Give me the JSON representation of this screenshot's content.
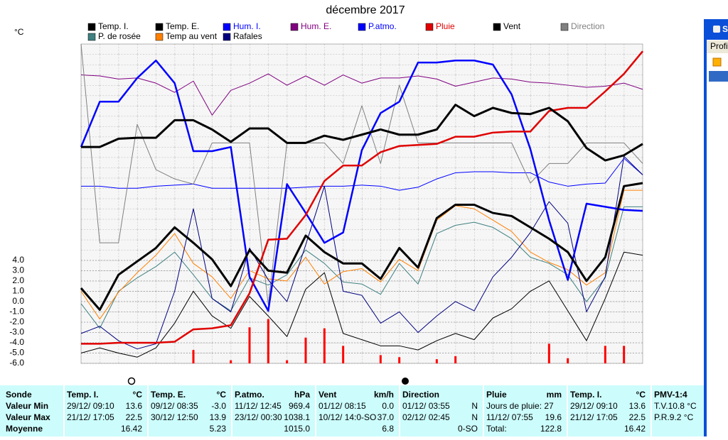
{
  "chart_data": {
    "type": "line",
    "title": "décembre 2017",
    "y_unit": "°C",
    "ylim": [
      -6,
      25
    ],
    "yticks": [
      {
        "value": -6,
        "label": "-6.0"
      },
      {
        "value": -5,
        "label": "-5.0"
      },
      {
        "value": -4,
        "label": "-4.0"
      },
      {
        "value": -3,
        "label": "-3.0"
      },
      {
        "value": -2,
        "label": "-2.0"
      },
      {
        "value": -1,
        "label": "-1.0"
      },
      {
        "value": 0,
        "label": "0.0"
      },
      {
        "value": 1,
        "label": "1.0"
      },
      {
        "value": 2,
        "label": "2.0"
      },
      {
        "value": 3,
        "label": "3.0"
      },
      {
        "value": 4,
        "label": "4.0"
      }
    ],
    "grid": true,
    "series": [
      {
        "name": "Temp. I.",
        "color": "#000000",
        "line_width": 3,
        "values": [
          1.3,
          -0.8,
          2.6,
          3.9,
          5.2,
          7.2,
          5.7,
          4.1,
          1.5,
          5.0,
          3.0,
          2.8,
          6.4,
          4.8,
          3.7,
          3.7,
          2.2,
          5.2,
          3.3,
          8.1,
          9.4,
          9.4,
          8.6,
          8.3,
          7.2,
          6.1,
          4.8,
          2.0,
          4.3,
          11.2,
          11.5
        ]
      },
      {
        "name": "Temp. E.",
        "color": "#000000",
        "line_width": 3,
        "values": [
          15.0,
          15.0,
          15.8,
          15.9,
          15.9,
          17.6,
          17.6,
          16.7,
          15.5,
          16.8,
          16.8,
          15.4,
          15.4,
          16.1,
          15.7,
          16.2,
          16.7,
          16.2,
          16.2,
          16.7,
          19.1,
          18.0,
          18.8,
          18.3,
          18.2,
          18.8,
          17.5,
          14.9,
          13.7,
          14.2,
          15.3
        ]
      },
      {
        "name": "Hum. I.",
        "color": "#0000ff",
        "line_width": 1,
        "values": [
          11.2,
          11.2,
          11.0,
          11.0,
          11.2,
          11.3,
          11.4,
          11.0,
          11.0,
          11.0,
          11.0,
          11.0,
          11.1,
          11.2,
          11.2,
          11.3,
          11.2,
          10.8,
          11.1,
          11.9,
          12.5,
          12.6,
          12.6,
          12.5,
          12.5,
          11.6,
          11.2,
          11.4,
          11.5,
          13.9,
          12.3
        ]
      },
      {
        "name": "Hum. E.",
        "color": "#800080",
        "line_width": 1,
        "values": [
          22.0,
          21.9,
          21.6,
          21.7,
          21.2,
          20.3,
          21.4,
          18.1,
          20.5,
          21.2,
          22.1,
          21.0,
          21.9,
          21.0,
          22.0,
          21.2,
          21.7,
          21.7,
          21.9,
          21.6,
          20.9,
          21.3,
          21.7,
          21.6,
          21.3,
          21.2,
          21.0,
          20.8,
          20.9,
          21.2,
          20.6
        ]
      },
      {
        "name": "P.atmo.",
        "color": "#0000ff",
        "line_width": 2.5,
        "values": [
          15.0,
          19.4,
          19.4,
          21.7,
          23.4,
          21.2,
          14.6,
          14.6,
          15.0,
          2.4,
          -0.9,
          11.4,
          8.6,
          5.7,
          6.7,
          14.7,
          18.3,
          19.4,
          23.2,
          23.2,
          23.4,
          23.4,
          23.0,
          20.1,
          14.8,
          7.9,
          2.1,
          9.5,
          9.2,
          8.9,
          8.8
        ]
      },
      {
        "name": "Pluie",
        "color": "#e00000",
        "line_width": 2.5,
        "values": [
          -4.1,
          -4.1,
          -4.0,
          -4.0,
          -4.0,
          -3.9,
          -2.7,
          -2.6,
          -2.3,
          0.8,
          6.0,
          6.1,
          8.4,
          11.7,
          13.2,
          13.2,
          14.5,
          15.1,
          15.2,
          15.3,
          16.0,
          16.0,
          16.4,
          16.5,
          16.5,
          18.5,
          18.8,
          18.8,
          20.4,
          22.1,
          24.3
        ]
      },
      {
        "name": "Vent",
        "color": "#000000",
        "line_width": 1,
        "values": [
          -5.0,
          -4.5,
          -5.0,
          -5.4,
          -4.5,
          -2.1,
          1.0,
          -1.4,
          -2.6,
          0.5,
          -1.4,
          -3.4,
          1.2,
          2.8,
          -3.1,
          -3.7,
          -4.3,
          -4.3,
          -4.7,
          -3.8,
          -3.1,
          -3.7,
          -1.6,
          -0.7,
          1.0,
          2.0,
          -0.9,
          -3.8,
          0.3,
          4.8,
          4.5
        ]
      },
      {
        "name": "Direction",
        "color": "#808080",
        "line_width": 1,
        "values": [
          25.0,
          5.7,
          5.7,
          17.2,
          12.8,
          11.9,
          11.4,
          15.4,
          15.4,
          15.4,
          -0.3,
          15.4,
          15.4,
          15.4,
          13.4,
          19.0,
          13.4,
          21.0,
          15.4,
          15.4,
          15.4,
          15.4,
          15.4,
          15.4,
          11.5,
          13.4,
          13.4,
          15.4,
          15.4,
          15.4,
          13.4
        ]
      },
      {
        "name": "P. de rosée",
        "color": "#408080",
        "line_width": 1,
        "values": [
          -0.2,
          -2.6,
          1.0,
          2.3,
          3.4,
          4.8,
          2.6,
          0.3,
          -0.9,
          2.3,
          1.6,
          2.6,
          5.0,
          3.7,
          1.9,
          1.7,
          0.7,
          3.7,
          1.7,
          6.6,
          7.4,
          7.7,
          7.2,
          6.1,
          4.3,
          3.7,
          2.6,
          0.0,
          2.3,
          9.2,
          9.2
        ]
      },
      {
        "name": "Temp au vent",
        "color": "#ff8000",
        "line_width": 1,
        "values": [
          1.0,
          -1.7,
          0.9,
          2.8,
          4.5,
          6.6,
          3.7,
          2.4,
          0.3,
          3.0,
          2.2,
          2.0,
          4.3,
          1.7,
          2.9,
          3.2,
          1.9,
          4.1,
          3.0,
          7.9,
          9.3,
          9.0,
          7.9,
          6.8,
          4.8,
          3.8,
          3.1,
          1.6,
          2.8,
          10.8,
          10.8
        ]
      },
      {
        "name": "Rafales",
        "color": "#000080",
        "line_width": 1,
        "values": [
          -3.1,
          -2.4,
          -3.8,
          -4.6,
          -4.1,
          1.0,
          9.0,
          0.3,
          -1.0,
          5.2,
          2.1,
          0.0,
          5.5,
          11.2,
          1.0,
          0.6,
          -2.1,
          -1.0,
          -3.0,
          -1.4,
          0.0,
          -0.9,
          2.4,
          4.3,
          6.7,
          9.7,
          7.6,
          -1.0,
          2.4,
          14.1,
          12.3
        ]
      }
    ],
    "rain_bars": {
      "color": "#ff0000",
      "values": [
        null,
        null,
        null,
        null,
        null,
        null,
        -4.7,
        null,
        -5.7,
        -2.5,
        -1.7,
        -5.7,
        -3.5,
        -2.6,
        -4.3,
        null,
        -5.2,
        -5.4,
        null,
        -5.6,
        -5.3,
        null,
        null,
        null,
        null,
        -4.1,
        -5.5,
        null,
        -4.3,
        -4.3,
        null
      ]
    }
  },
  "summary": {
    "row_labels": [
      "Sonde",
      "Valeur Min",
      "Valeur Max",
      "Moyenne"
    ],
    "columns": [
      {
        "name": "Temp. I.",
        "unit": "°C",
        "rows": [
          {
            "left": "29/12/ 09:10",
            "right": "13.6"
          },
          {
            "left": "21/12/ 17:05",
            "right": "22.5"
          },
          {
            "right": "16.42"
          }
        ]
      },
      {
        "name": "Temp. E.",
        "unit": "°C",
        "rows": [
          {
            "left": "09/12/ 08:35",
            "right": "-3.0"
          },
          {
            "left": "30/12/ 12:50",
            "right": "13.9"
          },
          {
            "right": "5.23"
          }
        ]
      },
      {
        "name": "P.atmo.",
        "unit": "hPa",
        "rows": [
          {
            "left": "11/12/ 12:45",
            "right": "969.4"
          },
          {
            "left": "23/12/ 00:30",
            "right": "1038.1"
          },
          {
            "right": "1015.0"
          }
        ]
      },
      {
        "name": "Vent",
        "unit": "km/h",
        "rows": [
          {
            "left": "01/12/ 08:15",
            "right": "0.0"
          },
          {
            "left": "10/12/ 14:0-SO",
            "right": "37.0"
          },
          {
            "right": "6.8"
          }
        ]
      },
      {
        "name": "Direction",
        "rows": [
          {
            "left": "01/12/ 03:55",
            "right": "N"
          },
          {
            "left": "02/12/ 02:45",
            "right": "N"
          },
          {
            "right": "0-SO"
          }
        ]
      },
      {
        "name": "Pluie",
        "unit": "mm",
        "rows": [
          {
            "left": "Jours de pluie: 27"
          },
          {
            "left": "11/12/ 07:55",
            "right": "19.6"
          },
          {
            "left": "Total:",
            "right": "122.8"
          }
        ]
      },
      {
        "name": "Temp. I.",
        "unit": "°C",
        "rows": [
          {
            "left": "29/12/ 09:10",
            "right": "13.6"
          },
          {
            "left": "21/12/ 17:05",
            "right": "22.5"
          },
          {
            "right": "16.42"
          }
        ]
      },
      {
        "name": "PMV-1:4",
        "rows": [
          {
            "left": "T.V.10.8 °C"
          },
          {
            "left": "P.R.9.2 °C"
          }
        ]
      }
    ]
  },
  "side_window": {
    "title": "S",
    "tab": "Profil"
  }
}
